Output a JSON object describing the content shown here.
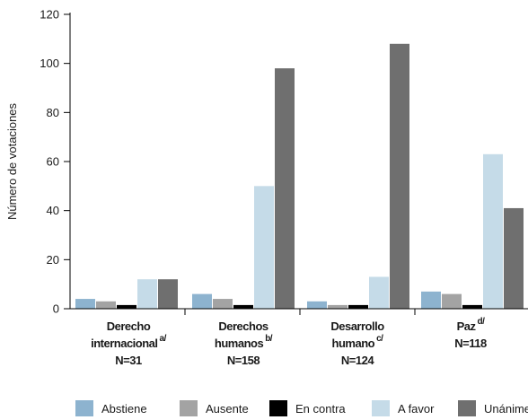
{
  "chart_data": {
    "type": "bar",
    "ylabel": "Número de votaciones",
    "ylim": [
      0,
      120
    ],
    "yticks": [
      "0",
      "20",
      "40",
      "60",
      "80",
      "100",
      "120"
    ],
    "categories": [
      {
        "lines": [
          "Derecho",
          "internacional",
          "N=31"
        ],
        "note": "a/",
        "note_line": 1
      },
      {
        "lines": [
          "Derechos",
          "humanos",
          "N=158"
        ],
        "note": "b/",
        "note_line": 1
      },
      {
        "lines": [
          "Desarrollo",
          "humano",
          "N=124"
        ],
        "note": "c/",
        "note_line": 1
      },
      {
        "lines": [
          "Paz",
          "N=118"
        ],
        "note": "d/",
        "note_line": 0
      }
    ],
    "series": [
      {
        "name": "Abstiene",
        "color": "#8db3cf",
        "values": [
          4,
          6,
          3,
          7
        ]
      },
      {
        "name": "Ausente",
        "color": "#a3a3a3",
        "values": [
          3,
          4,
          1.5,
          6
        ]
      },
      {
        "name": "En contra",
        "color": "#000000",
        "values": [
          1.5,
          1.5,
          1.5,
          1.5
        ]
      },
      {
        "name": "A favor",
        "color": "#c5dbe8",
        "values": [
          12,
          50,
          13,
          63
        ]
      },
      {
        "name": "Unánime",
        "color": "#6f6f6f",
        "values": [
          12,
          98,
          108,
          41
        ]
      }
    ],
    "legend_position": "bottom"
  }
}
